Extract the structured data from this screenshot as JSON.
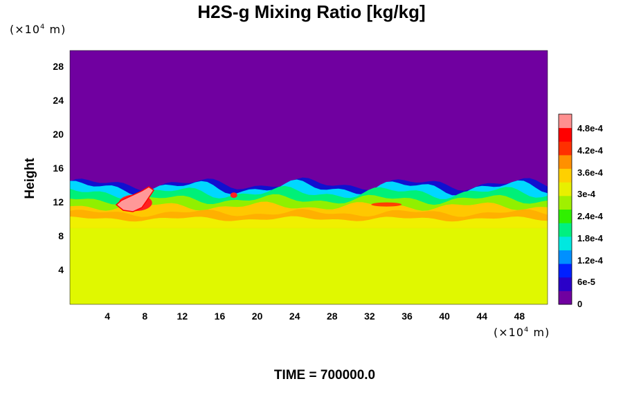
{
  "chart_data": {
    "type": "heatmap",
    "title": "H2S-g Mixing Ratio [kg/kg]",
    "ylabel": "Height",
    "x_unit_label": "(×10",
    "y_unit_label": "(×10",
    "unit_exp": "4",
    "unit_suffix": " m)",
    "xlim": [
      0,
      51
    ],
    "ylim": [
      0,
      30
    ],
    "x_ticks": [
      4,
      8,
      12,
      16,
      20,
      24,
      28,
      32,
      36,
      40,
      44,
      48
    ],
    "y_ticks": [
      4,
      8,
      12,
      16,
      20,
      24,
      28
    ],
    "colorbar": {
      "range": [
        0,
        0.00052
      ],
      "tick_labels": [
        "0",
        "6e-5",
        "1.2e-4",
        "1.8e-4",
        "2.4e-4",
        "3e-4",
        "3.6e-4",
        "4.2e-4",
        "4.8e-4"
      ],
      "tick_values": [
        0,
        6e-05,
        0.00012,
        0.00018,
        0.00024,
        0.0003,
        0.00036,
        0.00042,
        0.00048
      ],
      "colormap": [
        "#7000a0",
        "#2a00c8",
        "#0020ff",
        "#0090ff",
        "#00e8e0",
        "#00f080",
        "#30f000",
        "#a0f000",
        "#e8f000",
        "#ffd000",
        "#ff9000",
        "#ff3000",
        "#ff0000",
        "#ff9090"
      ]
    },
    "field_description_layers": {
      "top_value": 0,
      "interface_height": 14,
      "lower_value": 0.00035,
      "band_value_near_11": 0.00038,
      "peak_blob": {
        "x_center": 7,
        "y_center": 12,
        "value": 0.0005
      }
    }
  },
  "footer": {
    "time_text": "TIME = 700000.0"
  }
}
